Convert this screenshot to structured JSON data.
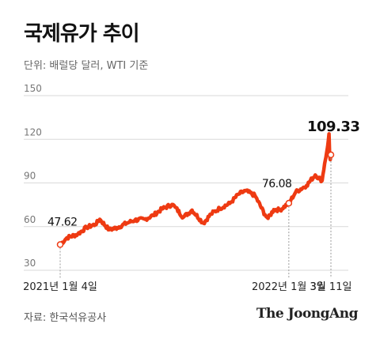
{
  "header": {
    "title": "국제유가 추이",
    "subtitle": "단위: 배럴당 달러, WTI 기준"
  },
  "footer": {
    "source": "자료: 한국석유공사",
    "brand": "The JoongAng"
  },
  "colors": {
    "line": "#ee3a12",
    "grid": "#d9d9d9",
    "axis_text": "#777777",
    "marker_line": "#999999"
  },
  "chart_data": {
    "type": "line",
    "title": "국제유가 추이",
    "ylabel": "단위: 배럴당 달러, WTI 기준",
    "ylim": [
      30,
      150
    ],
    "yticks": [
      30,
      60,
      90,
      120,
      150
    ],
    "xlim": [
      "2021-01-04",
      "2022-03-11"
    ],
    "grid": true,
    "x_tick_labels": [
      {
        "date": "2021-01-04",
        "label": "2021년 1월 4일"
      },
      {
        "date": "2022-01-03",
        "label": "2022년 1월 3일"
      },
      {
        "date": "2022-03-11",
        "label": "3월 11일"
      }
    ],
    "annotations": [
      {
        "date": "2021-01-04",
        "value": 47.62,
        "label": "47.62"
      },
      {
        "date": "2022-01-03",
        "value": 76.08,
        "label": "76.08"
      },
      {
        "date": "2022-03-11",
        "value": 109.33,
        "label": "109.33"
      }
    ],
    "series": [
      {
        "x": [
          "2021-01-04",
          "2021-01-15",
          "2021-02-01",
          "2021-02-15",
          "2021-03-01",
          "2021-03-08",
          "2021-03-23",
          "2021-04-05",
          "2021-04-20",
          "2021-05-03",
          "2021-05-19",
          "2021-06-01",
          "2021-06-15",
          "2021-07-01",
          "2021-07-06",
          "2021-07-19",
          "2021-08-02",
          "2021-08-20",
          "2021-09-01",
          "2021-09-15",
          "2021-10-01",
          "2021-10-15",
          "2021-10-26",
          "2021-11-10",
          "2021-11-26",
          "2021-12-01",
          "2021-12-10",
          "2021-12-20",
          "2022-01-03",
          "2022-01-14",
          "2022-01-31",
          "2022-02-14",
          "2022-02-25",
          "2022-03-01",
          "2022-03-03",
          "2022-03-07",
          "2022-03-08",
          "2022-03-09",
          "2022-03-10",
          "2022-03-11"
        ],
        "values": [
          47.62,
          52.4,
          54.8,
          59.5,
          61.5,
          65.0,
          57.8,
          59.3,
          62.4,
          64.5,
          65.0,
          67.7,
          72.1,
          75.2,
          73.4,
          66.4,
          71.3,
          62.3,
          68.6,
          72.6,
          75.9,
          82.3,
          84.6,
          81.4,
          68.2,
          65.6,
          71.7,
          71.5,
          76.08,
          83.8,
          88.2,
          95.5,
          91.6,
          103.4,
          107.7,
          119.4,
          123.7,
          108.7,
          106.0,
          109.33
        ]
      }
    ]
  }
}
